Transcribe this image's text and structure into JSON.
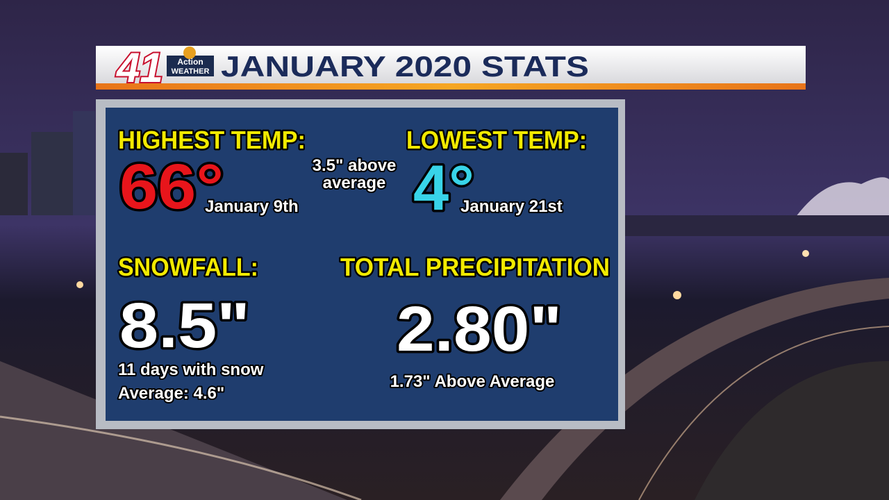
{
  "banner": {
    "logo": {
      "number": "41",
      "line1": "Action",
      "line2": "WEATHER"
    },
    "title": "JANUARY 2020 STATS"
  },
  "panel": {
    "highest_temp": {
      "label": "HIGHEST TEMP:",
      "value": "66°",
      "date": "January 9th"
    },
    "note": [
      "3.5\" above",
      "average"
    ],
    "lowest_temp": {
      "label": "LOWEST TEMP:",
      "value": "4°",
      "date": "January 21st"
    },
    "snowfall": {
      "label": "SNOWFALL:",
      "value": "8.5\"",
      "details": [
        "11 days with snow",
        "Average: 4.6\""
      ]
    },
    "precipitation": {
      "label": "TOTAL PRECIPITATION",
      "value": "2.80\"",
      "note": "1.73\" Above Average"
    }
  }
}
